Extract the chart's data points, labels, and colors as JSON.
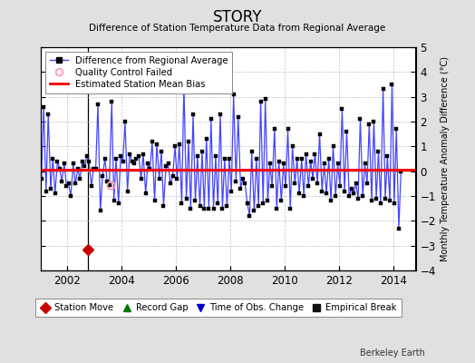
{
  "title": "STORY",
  "subtitle": "Difference of Station Temperature Data from Regional Average",
  "ylabel": "Monthly Temperature Anomaly Difference (°C)",
  "xlim": [
    2001.0,
    2014.83
  ],
  "ylim": [
    -4,
    5
  ],
  "yticks": [
    -4,
    -3,
    -2,
    -1,
    0,
    1,
    2,
    3,
    4,
    5
  ],
  "xticks": [
    2002,
    2004,
    2006,
    2008,
    2010,
    2012,
    2014
  ],
  "mean_bias": 0.05,
  "station_move_x": 2002.75,
  "qc_failed_x": 2003.58,
  "qc_failed_y": -0.55,
  "line_color": "#4444ff",
  "bias_color": "#ff0000",
  "bg_color": "#e0e0e0",
  "plot_bg": "#ffffff",
  "grid_color": "#c0c0c0",
  "watermark": "Berkeley Earth",
  "data_x": [
    2001.04,
    2001.12,
    2001.21,
    2001.29,
    2001.38,
    2001.46,
    2001.54,
    2001.63,
    2001.71,
    2001.79,
    2001.88,
    2001.96,
    2002.04,
    2002.12,
    2002.21,
    2002.29,
    2002.38,
    2002.46,
    2002.54,
    2002.63,
    2002.71,
    2002.79,
    2002.88,
    2002.96,
    2003.04,
    2003.12,
    2003.21,
    2003.29,
    2003.38,
    2003.46,
    2003.54,
    2003.63,
    2003.71,
    2003.79,
    2003.88,
    2003.96,
    2004.04,
    2004.12,
    2004.21,
    2004.29,
    2004.38,
    2004.46,
    2004.54,
    2004.63,
    2004.71,
    2004.79,
    2004.88,
    2004.96,
    2005.04,
    2005.12,
    2005.21,
    2005.29,
    2005.38,
    2005.46,
    2005.54,
    2005.63,
    2005.71,
    2005.79,
    2005.88,
    2005.96,
    2006.04,
    2006.12,
    2006.21,
    2006.29,
    2006.38,
    2006.46,
    2006.54,
    2006.63,
    2006.71,
    2006.79,
    2006.88,
    2006.96,
    2007.04,
    2007.12,
    2007.21,
    2007.29,
    2007.38,
    2007.46,
    2007.54,
    2007.63,
    2007.71,
    2007.79,
    2007.88,
    2007.96,
    2008.04,
    2008.12,
    2008.21,
    2008.29,
    2008.38,
    2008.46,
    2008.54,
    2008.63,
    2008.71,
    2008.79,
    2008.88,
    2008.96,
    2009.04,
    2009.12,
    2009.21,
    2009.29,
    2009.38,
    2009.46,
    2009.54,
    2009.63,
    2009.71,
    2009.79,
    2009.88,
    2009.96,
    2010.04,
    2010.12,
    2010.21,
    2010.29,
    2010.38,
    2010.46,
    2010.54,
    2010.63,
    2010.71,
    2010.79,
    2010.88,
    2010.96,
    2011.04,
    2011.12,
    2011.21,
    2011.29,
    2011.38,
    2011.46,
    2011.54,
    2011.63,
    2011.71,
    2011.79,
    2011.88,
    2011.96,
    2012.04,
    2012.12,
    2012.21,
    2012.29,
    2012.38,
    2012.46,
    2012.54,
    2012.63,
    2012.71,
    2012.79,
    2012.88,
    2012.96,
    2013.04,
    2013.12,
    2013.21,
    2013.29,
    2013.38,
    2013.46,
    2013.54,
    2013.63,
    2013.71,
    2013.79,
    2013.88,
    2013.96,
    2014.04,
    2014.12,
    2014.21,
    2014.29
  ],
  "data_y": [
    -0.3,
    2.6,
    -0.8,
    2.3,
    -0.7,
    0.5,
    -0.9,
    0.4,
    0.1,
    -0.4,
    0.3,
    -0.6,
    -0.5,
    -1.0,
    0.3,
    -0.5,
    0.1,
    -0.3,
    0.4,
    0.2,
    0.6,
    0.4,
    -0.6,
    0.1,
    0.1,
    2.7,
    -1.6,
    -0.2,
    0.5,
    -0.4,
    -0.55,
    2.8,
    -1.2,
    0.5,
    -1.3,
    0.6,
    0.4,
    2.0,
    -0.8,
    0.7,
    0.4,
    0.3,
    0.5,
    0.6,
    -0.3,
    0.7,
    -0.9,
    0.3,
    0.1,
    1.2,
    -1.2,
    1.1,
    -0.3,
    0.8,
    -1.4,
    0.2,
    0.3,
    -0.5,
    -0.2,
    1.0,
    -0.3,
    1.1,
    -1.3,
    3.5,
    -1.1,
    1.2,
    -1.5,
    2.3,
    -1.2,
    0.6,
    -1.4,
    0.8,
    -1.5,
    1.3,
    -1.5,
    2.1,
    -1.5,
    0.6,
    -1.3,
    2.3,
    -1.5,
    0.5,
    -1.4,
    0.5,
    -0.8,
    3.1,
    -0.4,
    2.2,
    -0.7,
    -0.3,
    -0.5,
    -1.3,
    -1.8,
    0.8,
    -1.6,
    0.5,
    -1.4,
    2.8,
    -1.3,
    2.9,
    -1.2,
    0.3,
    -0.6,
    1.7,
    -1.5,
    0.4,
    -1.2,
    0.3,
    -0.6,
    1.7,
    -1.5,
    1.0,
    -0.5,
    0.5,
    -0.9,
    0.5,
    -1.0,
    0.7,
    -0.6,
    0.4,
    -0.3,
    0.7,
    -0.5,
    1.5,
    -0.8,
    0.3,
    -0.9,
    0.5,
    -1.2,
    1.0,
    -1.0,
    0.3,
    -0.6,
    2.5,
    -0.8,
    1.6,
    -1.0,
    -0.7,
    -0.9,
    -0.5,
    -1.1,
    2.1,
    -1.0,
    0.3,
    -0.5,
    1.9,
    -1.2,
    2.0,
    -1.1,
    0.8,
    -1.3,
    3.3,
    -1.1,
    0.6,
    -1.2,
    3.5,
    -1.3,
    1.7,
    -2.3,
    0.0
  ],
  "legend2_items": [
    {
      "label": "Station Move",
      "marker": "D",
      "color": "#cc0000"
    },
    {
      "label": "Record Gap",
      "marker": "^",
      "color": "#007700"
    },
    {
      "label": "Time of Obs. Change",
      "marker": "v",
      "color": "#0000cc"
    },
    {
      "label": "Empirical Break",
      "marker": "s",
      "color": "#111111"
    }
  ]
}
